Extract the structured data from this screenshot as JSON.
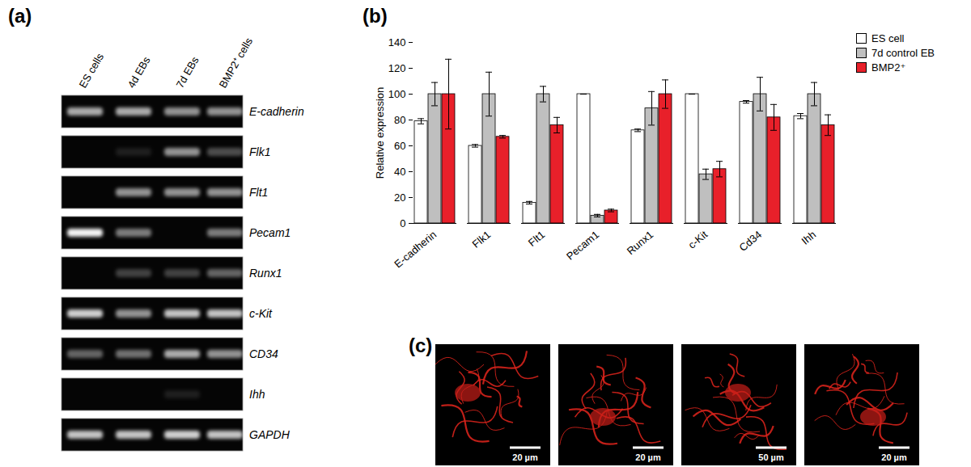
{
  "panel_labels": [
    "(a)",
    "(b)",
    "(c)"
  ],
  "gel": {
    "lanes": [
      "ES cells",
      "4d EBs",
      "7d EBs",
      "BMP2⁺ cells"
    ],
    "genes": [
      "E-cadherin",
      "Flk1",
      "Flt1",
      "Pecam1",
      "Runx1",
      "c-Kit",
      "CD34",
      "Ihh",
      "GAPDH"
    ],
    "band_intensity": [
      [
        0.7,
        0.7,
        0.6,
        0.6
      ],
      [
        0,
        0.1,
        0.6,
        0.3
      ],
      [
        0,
        0.6,
        0.6,
        0.6
      ],
      [
        1,
        0.5,
        0,
        0.5
      ],
      [
        0,
        0.25,
        0.25,
        0.4
      ],
      [
        0.85,
        0.6,
        0.8,
        0.8
      ],
      [
        0.4,
        0.45,
        0.7,
        0.6
      ],
      [
        0,
        0,
        0.1,
        0
      ],
      [
        0.8,
        0.8,
        0.85,
        0.8
      ]
    ]
  },
  "chart_data": {
    "type": "bar",
    "y_label": "Relative expression",
    "categories": [
      "E-cadherin",
      "Flk1",
      "Flt1",
      "Pecam1",
      "Runx1",
      "c-Kit",
      "Cd34",
      "Ihh"
    ],
    "series": [
      {
        "name": "ES cell",
        "color": "#ffffff",
        "values": [
          79,
          60,
          16,
          100,
          72,
          100,
          94,
          83
        ],
        "errors": [
          2,
          1,
          1,
          0,
          1,
          0,
          1,
          2
        ]
      },
      {
        "name": "7d control EB",
        "color": "#bfbfbf",
        "values": [
          100,
          100,
          100,
          6,
          89,
          38,
          100,
          100
        ],
        "errors": [
          9,
          17,
          6,
          1,
          13,
          4,
          13,
          9
        ]
      },
      {
        "name": "BMP2⁺",
        "color": "#e8202a",
        "values": [
          100,
          67,
          76,
          10,
          100,
          42,
          82,
          76
        ],
        "errors": [
          27,
          1,
          6,
          1,
          11,
          6,
          10,
          8
        ]
      }
    ],
    "ylim": [
      0,
      140
    ],
    "yticks": [
      0,
      20,
      40,
      60,
      80,
      100,
      120,
      140
    ],
    "legend": "top-right"
  },
  "micrographs": {
    "scale_bars": [
      "20 µm",
      "20 µm",
      "50 µm",
      "20 µm"
    ]
  }
}
